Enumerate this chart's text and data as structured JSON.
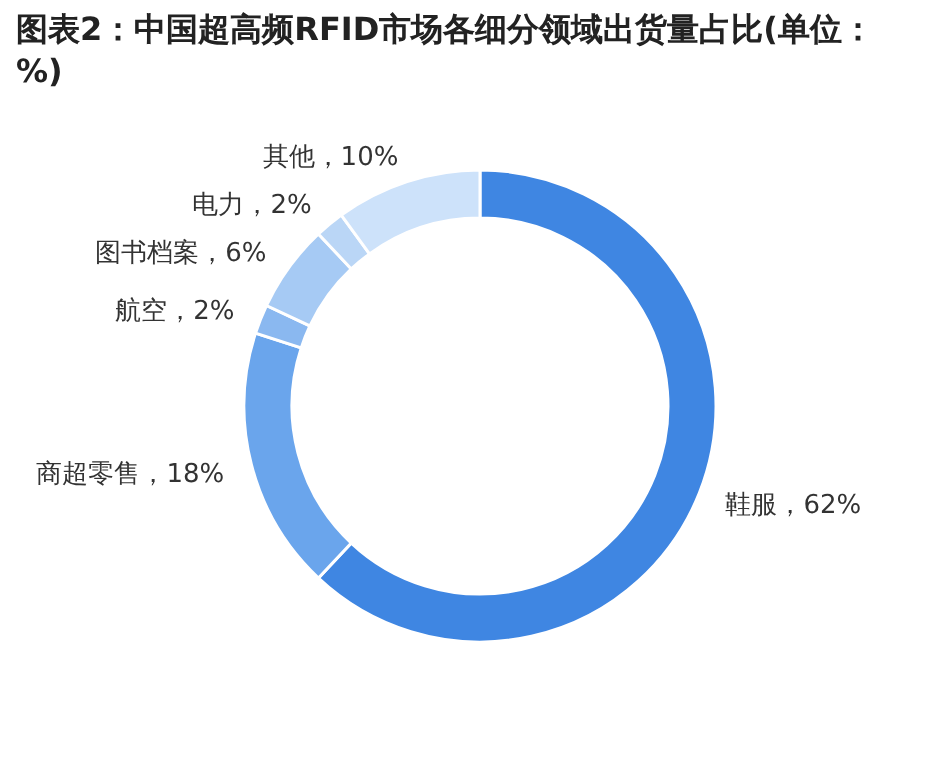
{
  "chart_data": {
    "type": "donut",
    "title": "图表2：中国超高频RFID市场各细分领域出货量占比(单位：%)",
    "categories": [
      "鞋服",
      "商超零售",
      "航空",
      "图书档案",
      "电力",
      "其他"
    ],
    "values": [
      62,
      18,
      2,
      6,
      2,
      10
    ],
    "colors": [
      "#3f86e2",
      "#6aa5ec",
      "#8ab8f0",
      "#a6caf4",
      "#bad6f6",
      "#cde2fa"
    ],
    "value_labels": [
      "62%",
      "18%",
      "2%",
      "6%",
      "2%",
      "10%"
    ]
  }
}
